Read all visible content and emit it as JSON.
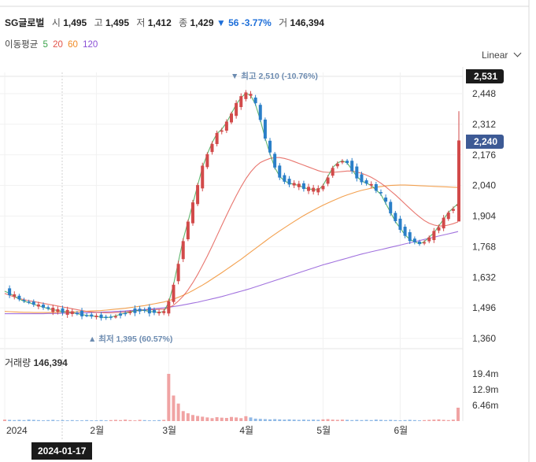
{
  "header": {
    "name": "SG글로벌",
    "open_label": "시",
    "open": "1,495",
    "high_label": "고",
    "high": "1,495",
    "low_label": "저",
    "low": "1,412",
    "close_label": "종",
    "close": "1,429",
    "change": "▼ 56 -3.77%",
    "volume_label": "거",
    "volume": "146,394"
  },
  "ma_legend": {
    "label": "이동평균",
    "items": [
      {
        "text": "5",
        "color": "#3aa34a"
      },
      {
        "text": "20",
        "color": "#e2534a"
      },
      {
        "text": "60",
        "color": "#f08a24"
      },
      {
        "text": "120",
        "color": "#8a4fd6"
      }
    ]
  },
  "scale_toggle": "Linear",
  "price_tags": {
    "top": "2,531",
    "current": "2,240"
  },
  "annotations": {
    "max": "▼ 최고 2,510 (-10.76%)",
    "min": "▲ 최저 1,395 (60.57%)"
  },
  "volume_panel": {
    "title": "거래량",
    "value": "146,394",
    "ticks": [
      "19.4m",
      "12.9m",
      "6.46m"
    ]
  },
  "cursor_date": "2024-01-17",
  "colors": {
    "up": "#d24a4a",
    "down": "#2a7fc8",
    "tag_top": "#1b1b1b",
    "tag_current": "#3d5a95"
  },
  "chart_data": {
    "type": "candlestick",
    "y_ticks": [
      "2,448",
      "2,312",
      "2,176",
      "2,040",
      "1,904",
      "1,768",
      "1,632",
      "1,496",
      "1,360"
    ],
    "x_ticks": [
      "2024",
      "2월",
      "3월",
      "4월",
      "5월",
      "6월"
    ],
    "ylim": [
      1330,
      2550
    ],
    "series": [
      {
        "name": "5",
        "values": [
          1570,
          1560,
          1548,
          1535,
          1525,
          1520,
          1512,
          1505,
          1500,
          1492,
          1488,
          1484,
          1480,
          1478,
          1475,
          1470,
          1466,
          1462,
          1460,
          1458,
          1455,
          1452,
          1455,
          1460,
          1468,
          1472,
          1478,
          1482,
          1486,
          1484,
          1480,
          1478,
          1475,
          1480,
          1520,
          1600,
          1700,
          1800,
          1880,
          1960,
          2040,
          2120,
          2180,
          2230,
          2270,
          2290,
          2320,
          2360,
          2400,
          2430,
          2450,
          2440,
          2400,
          2330,
          2250,
          2180,
          2120,
          2080,
          2060,
          2050,
          2045,
          2040,
          2030,
          2025,
          2022,
          2020,
          2040,
          2080,
          2120,
          2140,
          2150,
          2140,
          2110,
          2080,
          2060,
          2050,
          2040,
          2020,
          2000,
          1960,
          1920,
          1880,
          1850,
          1820,
          1800,
          1790,
          1780,
          1790,
          1810,
          1830,
          1860,
          1890,
          1920,
          1940,
          1960
        ]
      },
      {
        "name": "20",
        "values": [
          1560,
          1552,
          1544,
          1538,
          1532,
          1528,
          1524,
          1520,
          1516,
          1512,
          1508,
          1504,
          1500,
          1496,
          1492,
          1488,
          1484,
          1480,
          1478,
          1476,
          1475,
          1474,
          1474,
          1475,
          1476,
          1478,
          1480,
          1482,
          1484,
          1486,
          1488,
          1488,
          1489,
          1490,
          1496,
          1508,
          1526,
          1548,
          1576,
          1608,
          1644,
          1684,
          1726,
          1770,
          1816,
          1862,
          1908,
          1952,
          1994,
          2034,
          2070,
          2100,
          2124,
          2142,
          2152,
          2160,
          2164,
          2164,
          2160,
          2154,
          2146,
          2138,
          2130,
          2122,
          2114,
          2106,
          2100,
          2098,
          2098,
          2100,
          2102,
          2104,
          2104,
          2100,
          2094,
          2086,
          2076,
          2064,
          2050,
          2034,
          2016,
          1998,
          1978,
          1958,
          1938,
          1918,
          1900,
          1884,
          1872,
          1864,
          1860,
          1860,
          1864,
          1870,
          1878
        ]
      },
      {
        "name": "60",
        "values": [
          1480,
          1479,
          1478,
          1477,
          1476,
          1476,
          1475,
          1475,
          1475,
          1475,
          1475,
          1476,
          1476,
          1477,
          1478,
          1479,
          1480,
          1481,
          1482,
          1483,
          1484,
          1486,
          1488,
          1490,
          1492,
          1494,
          1497,
          1500,
          1503,
          1506,
          1510,
          1514,
          1518,
          1522,
          1528,
          1535,
          1543,
          1552,
          1562,
          1573,
          1585,
          1597,
          1610,
          1624,
          1638,
          1652,
          1667,
          1682,
          1697,
          1712,
          1728,
          1744,
          1760,
          1776,
          1792,
          1808,
          1823,
          1838,
          1852,
          1866,
          1880,
          1893,
          1906,
          1918,
          1930,
          1941,
          1952,
          1962,
          1972,
          1981,
          1990,
          1998,
          2005,
          2012,
          2018,
          2023,
          2028,
          2032,
          2035,
          2038,
          2040,
          2041,
          2042,
          2042,
          2041,
          2040,
          2039,
          2038,
          2037,
          2036,
          2035,
          2034,
          2033,
          2032,
          2031
        ]
      },
      {
        "name": "120",
        "values": [
          1470,
          1470,
          1470,
          1470,
          1470,
          1470,
          1470,
          1470,
          1470,
          1471,
          1471,
          1471,
          1472,
          1472,
          1473,
          1473,
          1474,
          1474,
          1475,
          1476,
          1477,
          1478,
          1479,
          1480,
          1481,
          1482,
          1484,
          1485,
          1487,
          1488,
          1490,
          1492,
          1494,
          1496,
          1499,
          1502,
          1505,
          1509,
          1513,
          1517,
          1521,
          1526,
          1531,
          1536,
          1541,
          1546,
          1552,
          1558,
          1564,
          1570,
          1576,
          1582,
          1589,
          1596,
          1603,
          1610,
          1617,
          1624,
          1631,
          1638,
          1645,
          1652,
          1659,
          1666,
          1673,
          1680,
          1687,
          1693,
          1699,
          1705,
          1711,
          1717,
          1723,
          1729,
          1735,
          1740,
          1745,
          1750,
          1755,
          1760,
          1765,
          1770,
          1775,
          1780,
          1785,
          1790,
          1795,
          1800,
          1805,
          1810,
          1815,
          1820,
          1825,
          1830,
          1835
        ]
      }
    ],
    "volume": [
      0.6,
      0.5,
      0.4,
      0.5,
      0.4,
      0.6,
      0.5,
      0.4,
      0.3,
      0.4,
      0.5,
      0.3,
      0.4,
      0.3,
      0.4,
      0.3,
      0.3,
      0.4,
      0.3,
      0.3,
      0.4,
      0.3,
      0.4,
      0.5,
      0.4,
      0.6,
      0.4,
      0.3,
      0.5,
      0.4,
      0.3,
      0.3,
      0.4,
      0.5,
      19.4,
      10.5,
      7.2,
      4.1,
      3.2,
      2.5,
      2.1,
      1.8,
      1.5,
      1.2,
      1.6,
      1.4,
      1.3,
      1.7,
      1.5,
      1.2,
      2.0,
      1.5,
      1.0,
      0.9,
      0.8,
      0.7,
      0.8,
      0.7,
      0.6,
      0.7,
      0.6,
      0.5,
      0.6,
      0.5,
      0.6,
      0.5,
      0.7,
      0.8,
      0.6,
      0.5,
      0.6,
      0.5,
      0.4,
      0.5,
      0.4,
      0.5,
      0.4,
      0.6,
      0.5,
      0.4,
      0.5,
      0.4,
      0.3,
      0.4,
      0.5,
      0.4,
      0.3,
      0.4,
      0.5,
      0.6,
      0.7,
      0.5,
      0.4,
      0.6,
      5.5
    ]
  }
}
